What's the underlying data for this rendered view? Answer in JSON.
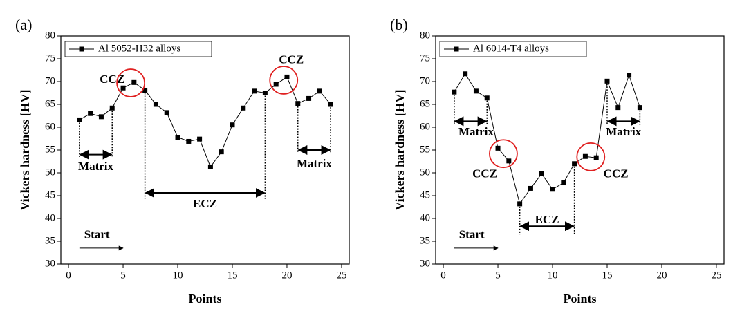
{
  "chart_data": [
    {
      "type": "line",
      "panel_label": "(a)",
      "x_label": "Points",
      "y_label": "Vickers hardness [HV]",
      "x": [
        1,
        2,
        3,
        4,
        5,
        6,
        7,
        8,
        9,
        10,
        11,
        12,
        13,
        14,
        15,
        16,
        17,
        18,
        19,
        20,
        21,
        22,
        23,
        24
      ],
      "series": [
        {
          "name": "Al 5052-H32 alloys",
          "color": "#000000",
          "values": [
            61.6,
            63.0,
            62.3,
            64.2,
            68.6,
            69.8,
            68.1,
            65.0,
            63.2,
            57.8,
            56.9,
            57.4,
            51.3,
            54.6,
            60.5,
            64.2,
            67.9,
            67.5,
            69.4,
            71.0,
            65.2,
            66.3,
            67.9,
            65.0
          ]
        }
      ],
      "xlim": [
        -0.7,
        25.7
      ],
      "ylim": [
        30,
        80
      ],
      "xticks": [
        0,
        5,
        10,
        15,
        20,
        25
      ],
      "yticks": [
        30,
        35,
        40,
        45,
        50,
        55,
        60,
        65,
        70,
        75,
        80
      ],
      "annotations": [
        "CCZ",
        "CCZ",
        "Matrix",
        "Matrix",
        "ECZ",
        "Start"
      ]
    },
    {
      "type": "line",
      "panel_label": "(b)",
      "x_label": "Points",
      "y_label": "Vickers hardness [HV]",
      "x": [
        1,
        2,
        3,
        4,
        5,
        6,
        7,
        8,
        9,
        10,
        11,
        12,
        13,
        14,
        15,
        16,
        17,
        18
      ],
      "series": [
        {
          "name": "Al 6014-T4 alloys",
          "color": "#000000",
          "values": [
            67.7,
            71.7,
            67.9,
            66.4,
            55.4,
            52.6,
            43.2,
            46.6,
            49.8,
            46.4,
            47.8,
            52.0,
            53.6,
            53.3,
            70.1,
            64.3,
            71.4,
            64.3
          ]
        }
      ],
      "xlim": [
        -0.7,
        25.7
      ],
      "ylim": [
        30,
        80
      ],
      "xticks": [
        0,
        5,
        10,
        15,
        20,
        25
      ],
      "yticks": [
        30,
        35,
        40,
        45,
        50,
        55,
        60,
        65,
        70,
        75,
        80
      ],
      "annotations": [
        "Matrix",
        "CCZ",
        "ECZ",
        "CCZ",
        "Matrix",
        "Start"
      ]
    }
  ]
}
